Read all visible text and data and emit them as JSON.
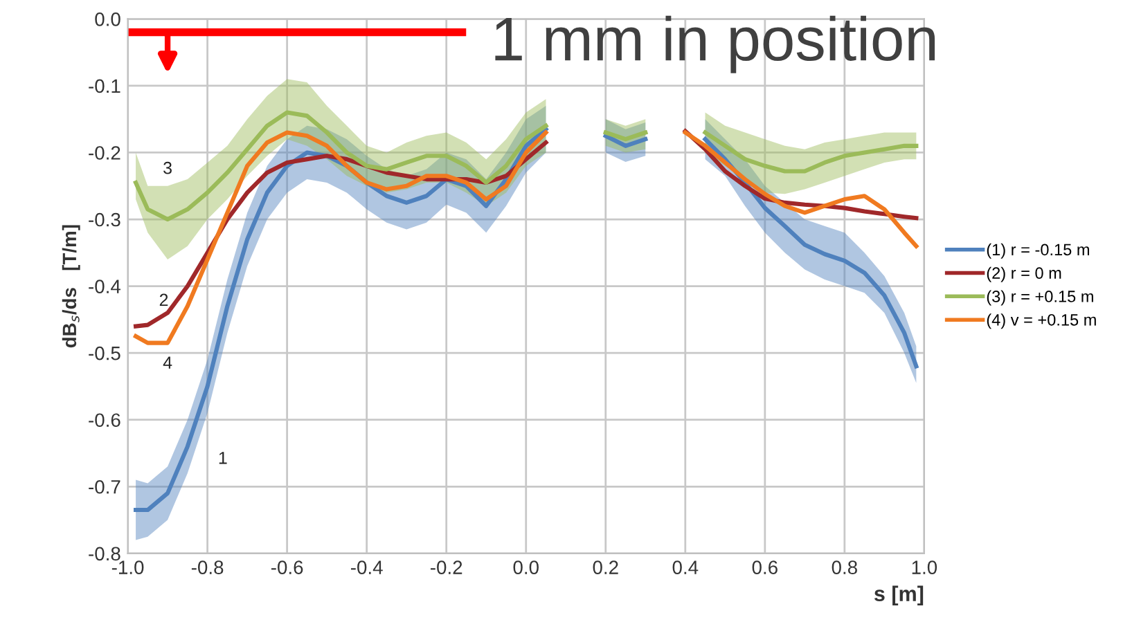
{
  "chart_data": {
    "type": "line",
    "xlabel": "s [m]",
    "ylabel": "dB$_{s}$/ds   [T/m]",
    "x": [
      -0.98,
      -0.95,
      -0.9,
      -0.85,
      -0.8,
      -0.75,
      -0.7,
      -0.65,
      -0.6,
      -0.55,
      -0.5,
      -0.45,
      -0.4,
      -0.35,
      -0.3,
      -0.25,
      -0.2,
      -0.15,
      -0.1,
      -0.05,
      0.0,
      0.05,
      0.1,
      0.15,
      0.2,
      0.25,
      0.3,
      0.35,
      0.4,
      0.45,
      0.5,
      0.55,
      0.6,
      0.65,
      0.7,
      0.75,
      0.8,
      0.85,
      0.9,
      0.95,
      0.98
    ],
    "series": [
      {
        "name": "(1) r = -0.15 m",
        "color": "#4f81bd",
        "values": [
          -0.735,
          -0.735,
          -0.71,
          -0.64,
          -0.55,
          -0.43,
          -0.33,
          -0.26,
          -0.22,
          -0.2,
          -0.205,
          -0.22,
          -0.245,
          -0.265,
          -0.275,
          -0.265,
          -0.24,
          -0.25,
          -0.28,
          -0.24,
          -0.19,
          -0.165,
          null,
          null,
          -0.175,
          -0.19,
          -0.18,
          null,
          null,
          -0.18,
          -0.21,
          -0.245,
          -0.283,
          -0.31,
          -0.338,
          -0.352,
          -0.362,
          -0.38,
          -0.414,
          -0.47,
          -0.52
        ],
        "lower": [
          -0.78,
          -0.775,
          -0.75,
          -0.68,
          -0.59,
          -0.47,
          -0.37,
          -0.3,
          -0.26,
          -0.24,
          -0.245,
          -0.26,
          -0.285,
          -0.305,
          -0.315,
          -0.305,
          -0.278,
          -0.29,
          -0.32,
          -0.28,
          -0.23,
          -0.2,
          null,
          null,
          -0.2,
          -0.214,
          -0.205,
          null,
          null,
          -0.21,
          -0.235,
          -0.28,
          -0.32,
          -0.35,
          -0.375,
          -0.39,
          -0.4,
          -0.41,
          -0.44,
          -0.5,
          -0.545
        ],
        "upper": [
          -0.69,
          -0.695,
          -0.67,
          -0.6,
          -0.51,
          -0.39,
          -0.29,
          -0.22,
          -0.18,
          -0.16,
          -0.165,
          -0.18,
          -0.205,
          -0.225,
          -0.235,
          -0.225,
          -0.2,
          -0.21,
          -0.24,
          -0.2,
          -0.15,
          -0.13,
          null,
          null,
          -0.15,
          -0.165,
          -0.155,
          null,
          null,
          -0.15,
          -0.18,
          -0.21,
          -0.25,
          -0.275,
          -0.3,
          -0.31,
          -0.32,
          -0.35,
          -0.385,
          -0.44,
          -0.49
        ]
      },
      {
        "name": "(2) r = 0 m",
        "color": "#a0282a",
        "values": [
          -0.46,
          -0.458,
          -0.44,
          -0.4,
          -0.35,
          -0.3,
          -0.26,
          -0.23,
          -0.215,
          -0.21,
          -0.205,
          -0.21,
          -0.22,
          -0.23,
          -0.235,
          -0.24,
          -0.24,
          -0.24,
          -0.245,
          -0.235,
          -0.21,
          -0.185,
          null,
          null,
          null,
          null,
          null,
          null,
          -0.168,
          -0.195,
          -0.228,
          -0.25,
          -0.269,
          -0.275,
          -0.278,
          -0.28,
          -0.283,
          -0.288,
          -0.292,
          -0.296,
          -0.298
        ]
      },
      {
        "name": "(3) r = +0.15 m",
        "color": "#9bbb59",
        "values": [
          -0.245,
          -0.285,
          -0.3,
          -0.285,
          -0.26,
          -0.23,
          -0.195,
          -0.16,
          -0.14,
          -0.145,
          -0.17,
          -0.2,
          -0.22,
          -0.225,
          -0.215,
          -0.205,
          -0.205,
          -0.22,
          -0.245,
          -0.22,
          -0.18,
          -0.16,
          null,
          null,
          -0.17,
          -0.18,
          -0.17,
          null,
          null,
          -0.17,
          -0.19,
          -0.21,
          -0.22,
          -0.228,
          -0.228,
          -0.215,
          -0.205,
          -0.2,
          -0.195,
          -0.19,
          -0.19
        ],
        "lower": [
          -0.27,
          -0.32,
          -0.36,
          -0.34,
          -0.3,
          -0.27,
          -0.235,
          -0.205,
          -0.18,
          -0.19,
          -0.21,
          -0.235,
          -0.25,
          -0.26,
          -0.255,
          -0.245,
          -0.245,
          -0.26,
          -0.28,
          -0.26,
          -0.22,
          -0.2,
          null,
          null,
          -0.19,
          -0.2,
          -0.195,
          null,
          null,
          -0.2,
          -0.22,
          -0.24,
          -0.26,
          -0.262,
          -0.255,
          -0.245,
          -0.235,
          -0.225,
          -0.215,
          -0.21,
          -0.21
        ],
        "upper": [
          -0.2,
          -0.25,
          -0.25,
          -0.24,
          -0.215,
          -0.19,
          -0.15,
          -0.115,
          -0.09,
          -0.095,
          -0.13,
          -0.16,
          -0.19,
          -0.2,
          -0.185,
          -0.175,
          -0.17,
          -0.185,
          -0.21,
          -0.18,
          -0.14,
          -0.12,
          null,
          null,
          -0.15,
          -0.16,
          -0.15,
          null,
          null,
          -0.14,
          -0.16,
          -0.17,
          -0.18,
          -0.19,
          -0.195,
          -0.185,
          -0.18,
          -0.175,
          -0.17,
          -0.17,
          -0.17
        ]
      },
      {
        "name": "(4) v = +0.15 m",
        "color": "#f07a20",
        "values": [
          -0.475,
          -0.485,
          -0.485,
          -0.43,
          -0.36,
          -0.29,
          -0.22,
          -0.185,
          -0.17,
          -0.175,
          -0.19,
          -0.22,
          -0.245,
          -0.255,
          -0.25,
          -0.235,
          -0.235,
          -0.245,
          -0.27,
          -0.25,
          -0.2,
          -0.17,
          null,
          null,
          null,
          null,
          null,
          null,
          -0.17,
          -0.19,
          -0.215,
          -0.24,
          -0.262,
          -0.28,
          -0.29,
          -0.28,
          -0.27,
          -0.265,
          -0.285,
          -0.32,
          -0.34
        ]
      }
    ],
    "xlim": [
      -1.0,
      1.0
    ],
    "xticks": [
      {
        "value": -1,
        "label": "-1.0"
      },
      -0.8,
      -0.6,
      -0.4,
      -0.2,
      {
        "value": 0,
        "label": "0.0"
      },
      0.2,
      0.4,
      0.6,
      0.8,
      {
        "value": 1,
        "label": "1.0"
      }
    ],
    "ylim": [
      -0.8,
      0.0
    ],
    "yticks": [
      -0.8,
      -0.7,
      -0.6,
      -0.5,
      -0.4,
      -0.3,
      -0.2,
      -0.1,
      {
        "value": 0,
        "label": "0.0"
      }
    ],
    "grid": true,
    "legend": "right",
    "marker": "none",
    "line_style": "solid",
    "annotations": [
      "1 mm in position",
      "1",
      "2",
      "3",
      "4"
    ]
  }
}
